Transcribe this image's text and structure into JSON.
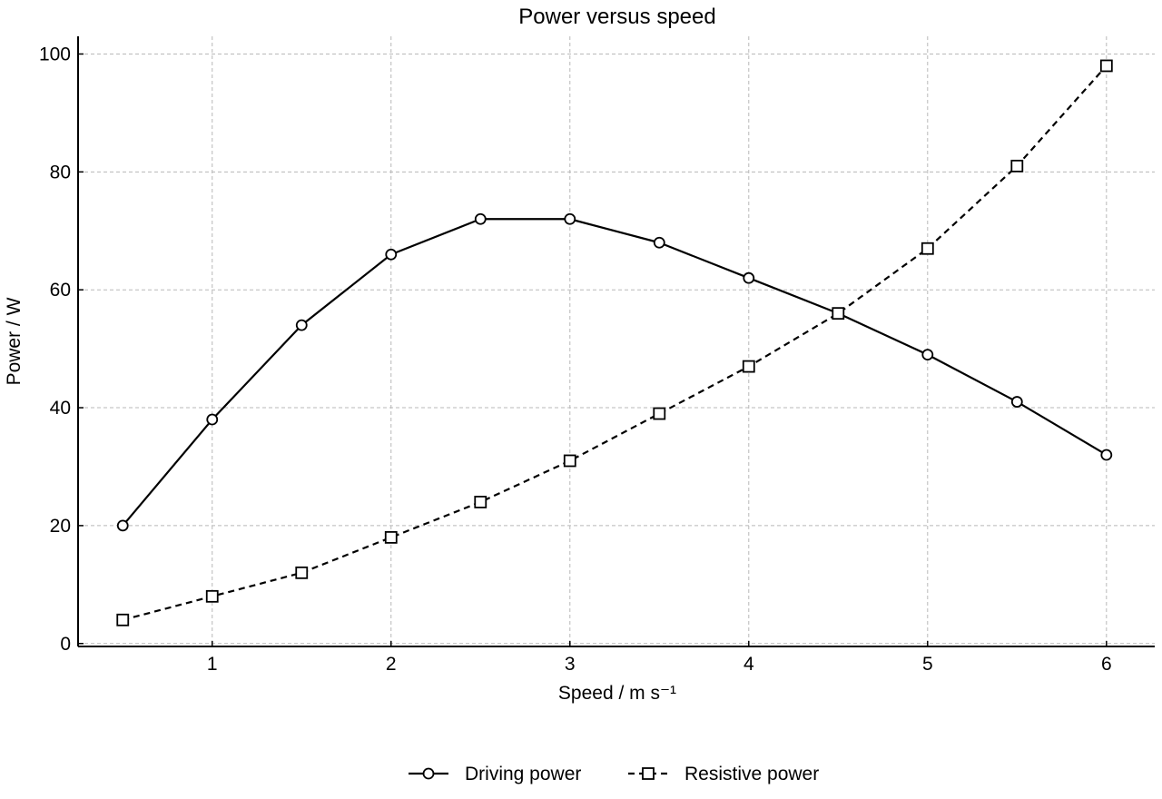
{
  "chart_data": {
    "type": "line",
    "title": "Power versus speed",
    "xlabel": "Speed / m s⁻¹",
    "ylabel": "Power / W",
    "xlim": [
      0.25,
      6.27
    ],
    "ylim": [
      -0.5,
      103
    ],
    "xticks": [
      1,
      2,
      3,
      4,
      5,
      6
    ],
    "yticks": [
      0,
      20,
      40,
      60,
      80,
      100
    ],
    "grid": true,
    "legend_position": "bottom-center",
    "x": [
      0.5,
      1.0,
      1.5,
      2.0,
      2.5,
      3.0,
      3.5,
      4.0,
      4.5,
      5.0,
      5.5,
      6.0
    ],
    "series": [
      {
        "name": "Driving power",
        "values": [
          20,
          38,
          54,
          66,
          72,
          72,
          68,
          62,
          56,
          49,
          41,
          32
        ],
        "marker": "circle",
        "line_style": "solid",
        "color": "#000000"
      },
      {
        "name": "Resistive power",
        "values": [
          4,
          8,
          12,
          18,
          24,
          31,
          39,
          47,
          56,
          67,
          81,
          98
        ],
        "marker": "square",
        "line_style": "dashed",
        "color": "#000000"
      }
    ]
  }
}
